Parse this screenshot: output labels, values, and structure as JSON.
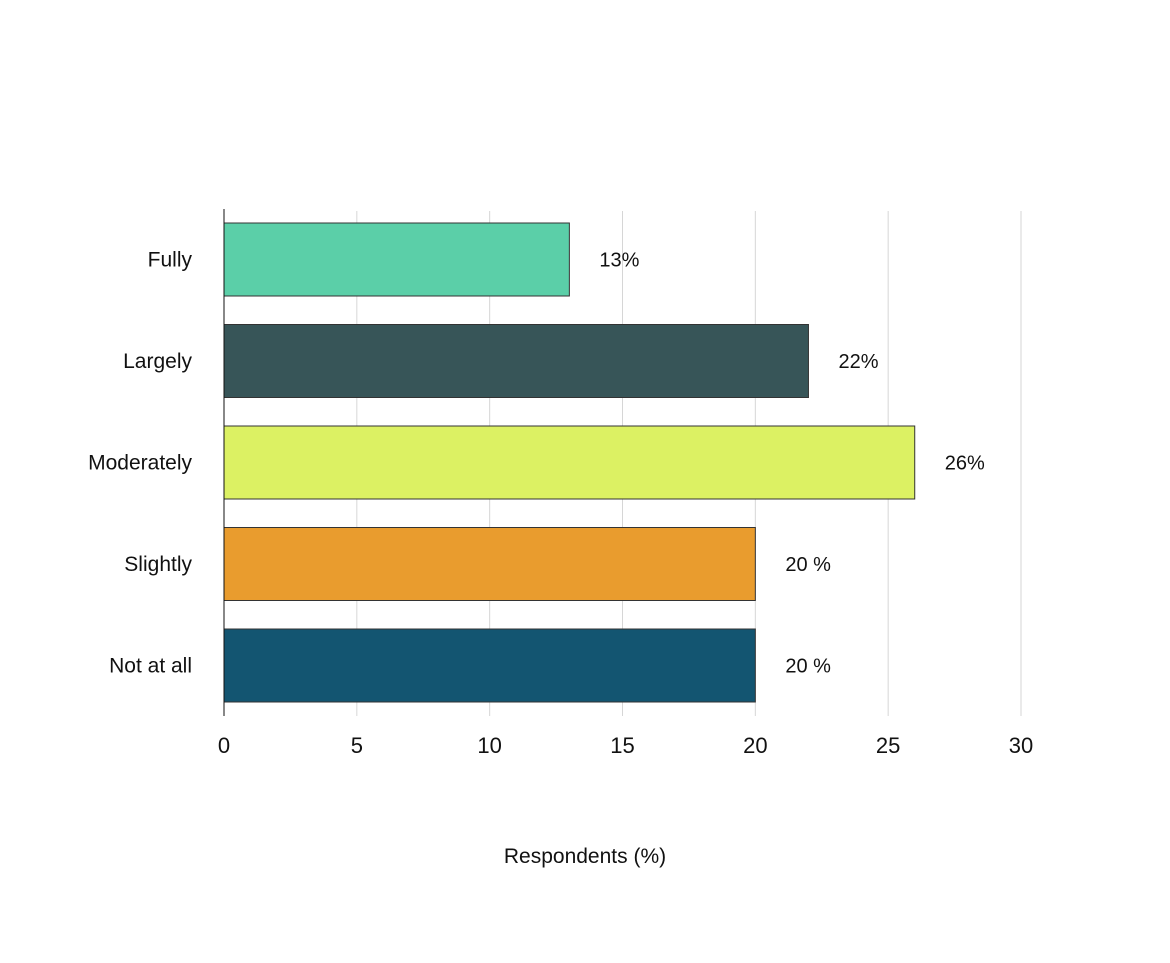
{
  "chart_data": {
    "type": "bar",
    "orientation": "horizontal",
    "categories": [
      "Fully",
      "Largely",
      "Moderately",
      "Slightly",
      "Not at all"
    ],
    "values": [
      13,
      22,
      26,
      20,
      20
    ],
    "data_labels": [
      "13%",
      "22%",
      "26%",
      "20 %",
      "20 %"
    ],
    "colors": [
      "#5bcfa8",
      "#375558",
      "#dcf163",
      "#e99c2e",
      "#135571"
    ],
    "xlabel": "Respondents (%)",
    "ylabel": "",
    "title": "",
    "xlim": [
      0,
      30
    ],
    "xticks": [
      0,
      5,
      10,
      15,
      20,
      25,
      30
    ],
    "grid": "vertical",
    "legend": "none"
  }
}
